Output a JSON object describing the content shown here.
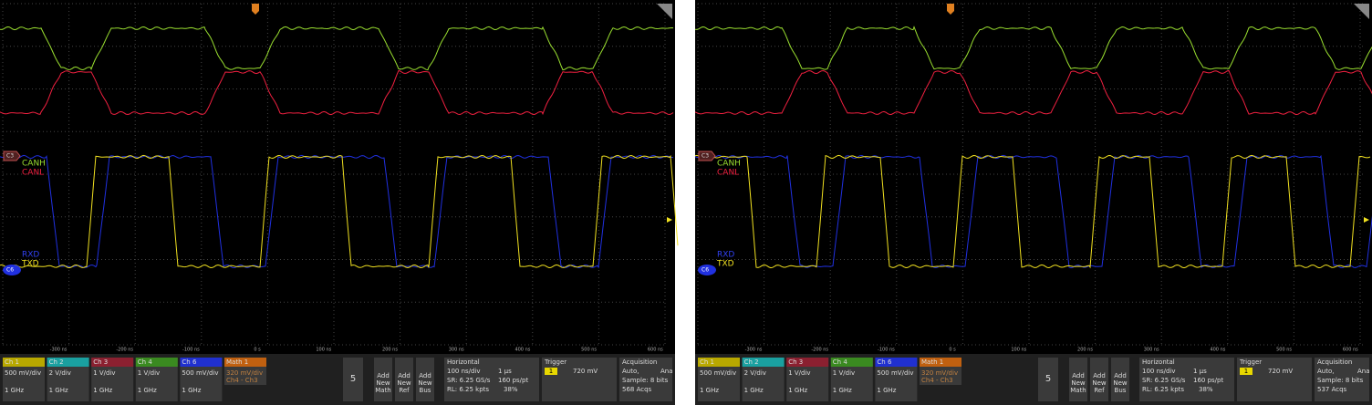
{
  "panels": [
    {
      "channel_labels": {
        "canh": "CANH",
        "canl": "CANL",
        "rxd": "RXD",
        "txd": "TXD"
      },
      "markers": {
        "c3": "C3",
        "c6": "C6"
      },
      "x_axis_labels": [
        "-300 ns",
        "-200 ns",
        "-100 ns",
        "0 s",
        "100 ns",
        "200 ns",
        "300 ns",
        "400 ns",
        "500 ns",
        "600 ns"
      ],
      "channels": [
        {
          "name": "Ch 1",
          "scale": "500 mV/div",
          "bw": "1 GHz"
        },
        {
          "name": "Ch 2",
          "scale": "2 V/div",
          "bw": "1 GHz"
        },
        {
          "name": "Ch 3",
          "scale": "1 V/div",
          "bw": "1 GHz"
        },
        {
          "name": "Ch 4",
          "scale": "1 V/div",
          "bw": "1 GHz"
        },
        {
          "name": "Ch 6",
          "scale": "500 mV/div",
          "bw": "1 GHz"
        }
      ],
      "math": {
        "name": "Math 1",
        "scale": "320 mV/div",
        "expr": "Ch4 - Ch3"
      },
      "count": "5",
      "add_buttons": [
        [
          "Add",
          "New",
          "Math"
        ],
        [
          "Add",
          "New",
          "Ref"
        ],
        [
          "Add",
          "New",
          "Bus"
        ]
      ],
      "horizontal": {
        "title": "Horizontal",
        "scale": "100 ns/div",
        "length": "1 µs",
        "sr": "SR: 6.25 GS/s",
        "res": "160 ps/pt",
        "rl": "RL: 6.25 kpts",
        "pos": "38%"
      },
      "trigger": {
        "title": "Trigger",
        "source": "1",
        "level": "720 mV"
      },
      "acquisition": {
        "title": "Acquisition",
        "mode": "Auto,",
        "mode2": "Ana",
        "sample": "Sample: 8 bits",
        "acqs": "568 Acqs"
      }
    },
    {
      "channel_labels": {
        "canh": "CANH",
        "canl": "CANL",
        "rxd": "RXD",
        "txd": "TXD"
      },
      "markers": {
        "c3": "C3",
        "c6": "C6"
      },
      "x_axis_labels": [
        "-300 ns",
        "-200 ns",
        "-100 ns",
        "0 s",
        "100 ns",
        "200 ns",
        "300 ns",
        "400 ns",
        "500 ns",
        "600 ns"
      ],
      "channels": [
        {
          "name": "Ch 1",
          "scale": "500 mV/div",
          "bw": "1 GHz"
        },
        {
          "name": "Ch 2",
          "scale": "2 V/div",
          "bw": "1 GHz"
        },
        {
          "name": "Ch 3",
          "scale": "1 V/div",
          "bw": "1 GHz"
        },
        {
          "name": "Ch 4",
          "scale": "1 V/div",
          "bw": "1 GHz"
        },
        {
          "name": "Ch 6",
          "scale": "500 mV/div",
          "bw": "1 GHz"
        }
      ],
      "math": {
        "name": "Math 1",
        "scale": "320 mV/div",
        "expr": "Ch4 - Ch3"
      },
      "count": "5",
      "add_buttons": [
        [
          "Add",
          "New",
          "Math"
        ],
        [
          "Add",
          "New",
          "Ref"
        ],
        [
          "Add",
          "New",
          "Bus"
        ]
      ],
      "horizontal": {
        "title": "Horizontal",
        "scale": "100 ns/div",
        "length": "1 µs",
        "sr": "SR: 6.25 GS/s",
        "res": "160 ps/pt",
        "rl": "RL: 6.25 kpts",
        "pos": "38%"
      },
      "trigger": {
        "title": "Trigger",
        "source": "1",
        "level": "720 mV"
      },
      "acquisition": {
        "title": "Acquisition",
        "mode": "Auto,",
        "mode2": "Ana",
        "sample": "Sample: 8 bits",
        "acqs": "537 Acqs"
      }
    }
  ]
}
